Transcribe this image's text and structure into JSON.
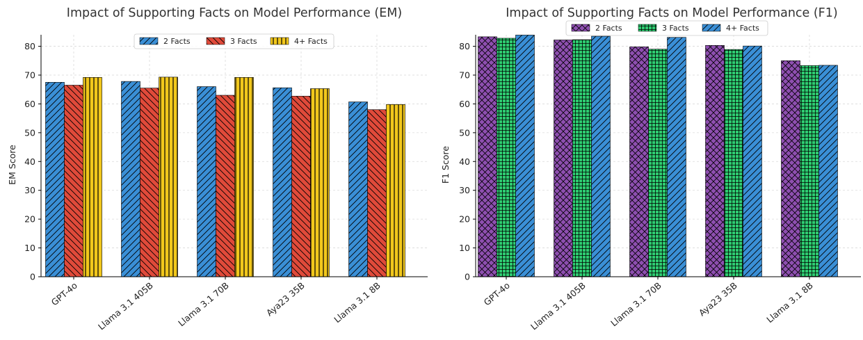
{
  "chart_data": [
    {
      "type": "bar",
      "title": "Impact of Supporting Facts on Model Performance (EM)",
      "xlabel": "",
      "ylabel": "EM Score",
      "ylim": [
        0,
        84
      ],
      "yticks": [
        0,
        10,
        20,
        30,
        40,
        50,
        60,
        70,
        80
      ],
      "grid": true,
      "legend_position": "top-center",
      "categories": [
        "GPT-4o",
        "Llama 3.1 405B",
        "Llama 3.1 70B",
        "Aya23 35B",
        "Llama 3.1 8B"
      ],
      "series": [
        {
          "name": "2 Facts",
          "values": [
            67.5,
            67.8,
            66.0,
            65.6,
            60.7
          ],
          "color": "#3a8fd6",
          "pattern": "diagonal-forward"
        },
        {
          "name": "3 Facts",
          "values": [
            66.5,
            65.5,
            63.0,
            62.7,
            58.0
          ],
          "color": "#e04a3a",
          "pattern": "diagonal-back"
        },
        {
          "name": "4+ Facts",
          "values": [
            69.2,
            69.3,
            69.2,
            65.3,
            59.8
          ],
          "color": "#f2c81c",
          "pattern": "vertical"
        }
      ]
    },
    {
      "type": "bar",
      "title": "Impact of Supporting Facts on Model Performance (F1)",
      "xlabel": "",
      "ylabel": "F1 Score",
      "ylim": [
        0,
        84
      ],
      "yticks": [
        0,
        10,
        20,
        30,
        40,
        50,
        60,
        70,
        80
      ],
      "grid": true,
      "legend_position": "top-center",
      "categories": [
        "GPT-4o",
        "Llama 3.1 405B",
        "Llama 3.1 70B",
        "Aya23 35B",
        "Llama 3.1 8B"
      ],
      "series": [
        {
          "name": "2 Facts",
          "values": [
            83.3,
            82.2,
            79.8,
            80.3,
            75.0
          ],
          "color": "#8e4fb0",
          "pattern": "crosshatch"
        },
        {
          "name": "3 Facts",
          "values": [
            82.8,
            82.3,
            79.0,
            78.9,
            73.3
          ],
          "color": "#2ecc71",
          "pattern": "grid"
        },
        {
          "name": "4+ Facts",
          "values": [
            83.9,
            83.5,
            83.1,
            80.1,
            73.4
          ],
          "color": "#3a8fd6",
          "pattern": "diagonal-forward"
        }
      ]
    }
  ]
}
